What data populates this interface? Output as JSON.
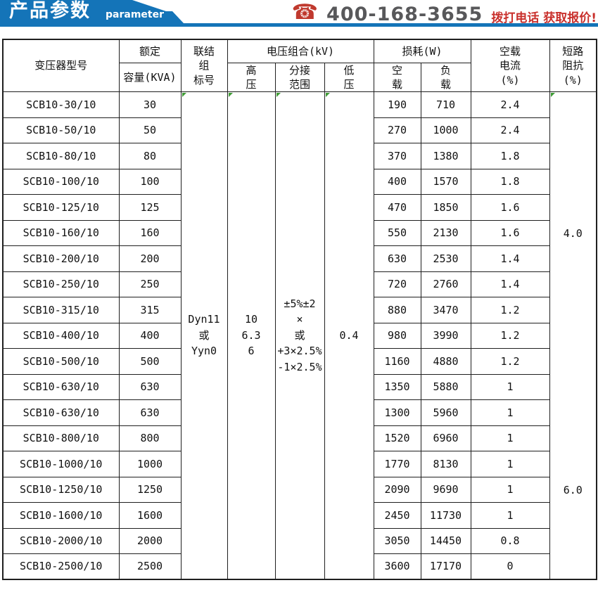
{
  "banner": {
    "title": "产品参数",
    "subtitle": "parameter",
    "banner_color": "#1474b8",
    "underline_color": "#1474b8"
  },
  "contact": {
    "phone_icon": "phone-icon",
    "phone_number": "400-168-3655",
    "cta": "拨打电话 获取报价!",
    "phone_color": "#58585a",
    "cta_color": "#c9302c",
    "icon_color": "#c0392e"
  },
  "table": {
    "headers": {
      "model": "变压器型号",
      "rated": "额定",
      "capacity": "容量(KVA)",
      "connection": "联结\n组\n标号",
      "voltage_combo": "电压组合(kV)",
      "high_voltage": "高\n压",
      "tap_range": "分接\n范围",
      "low_voltage": "低\n压",
      "loss": "损耗(W)",
      "no_load": "空\n载",
      "load": "负\n载",
      "no_load_current": "空载\n电流\n(%)",
      "impedance": "短路\n阻抗\n(%)"
    },
    "merged": {
      "connection": "Dyn11\n或\nYyn0",
      "high_voltage": "10\n6.3\n6",
      "tap_range": "±5%±2\n×\n或\n+3×2.5%\n-1×2.5%",
      "low_voltage": "0.4",
      "impedance_upper": "4.0",
      "impedance_lower": "6.0"
    },
    "rows": [
      {
        "model": "SCB10-30/10",
        "capacity": "30",
        "no_load": "190",
        "load": "710",
        "current": "2.4"
      },
      {
        "model": "SCB10-50/10",
        "capacity": "50",
        "no_load": "270",
        "load": "1000",
        "current": "2.4"
      },
      {
        "model": "SCB10-80/10",
        "capacity": "80",
        "no_load": "370",
        "load": "1380",
        "current": "1.8"
      },
      {
        "model": "SCB10-100/10",
        "capacity": "100",
        "no_load": "400",
        "load": "1570",
        "current": "1.8"
      },
      {
        "model": "SCB10-125/10",
        "capacity": "125",
        "no_load": "470",
        "load": "1850",
        "current": "1.6"
      },
      {
        "model": "SCB10-160/10",
        "capacity": "160",
        "no_load": "550",
        "load": "2130",
        "current": "1.6"
      },
      {
        "model": "SCB10-200/10",
        "capacity": "200",
        "no_load": "630",
        "load": "2530",
        "current": "1.4"
      },
      {
        "model": "SCB10-250/10",
        "capacity": "250",
        "no_load": "720",
        "load": "2760",
        "current": "1.4"
      },
      {
        "model": "SCB10-315/10",
        "capacity": "315",
        "no_load": "880",
        "load": "3470",
        "current": "1.2"
      },
      {
        "model": "SCB10-400/10",
        "capacity": "400",
        "no_load": "980",
        "load": "3990",
        "current": "1.2"
      },
      {
        "model": "SCB10-500/10",
        "capacity": "500",
        "no_load": "1160",
        "load": "4880",
        "current": "1.2"
      },
      {
        "model": "SCB10-630/10",
        "capacity": "630",
        "no_load": "1350",
        "load": "5880",
        "current": "1"
      },
      {
        "model": "SCB10-630/10",
        "capacity": "630",
        "no_load": "1300",
        "load": "5960",
        "current": "1"
      },
      {
        "model": "SCB10-800/10",
        "capacity": "800",
        "no_load": "1520",
        "load": "6960",
        "current": "1"
      },
      {
        "model": "SCB10-1000/10",
        "capacity": "1000",
        "no_load": "1770",
        "load": "8130",
        "current": "1"
      },
      {
        "model": "SCB10-1250/10",
        "capacity": "1250",
        "no_load": "2090",
        "load": "9690",
        "current": "1"
      },
      {
        "model": "SCB10-1600/10",
        "capacity": "1600",
        "no_load": "2450",
        "load": "11730",
        "current": "1"
      },
      {
        "model": "SCB10-2000/10",
        "capacity": "2000",
        "no_load": "3050",
        "load": "14450",
        "current": "0.8"
      },
      {
        "model": "SCB10-2500/10",
        "capacity": "2500",
        "no_load": "3600",
        "load": "17170",
        "current": "0"
      }
    ]
  }
}
